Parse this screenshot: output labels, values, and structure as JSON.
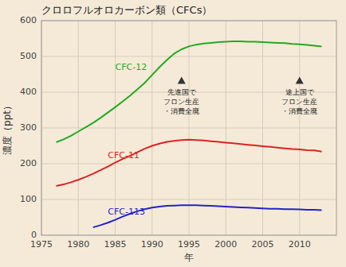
{
  "chart_data": {
    "type": "line",
    "title": "クロロフルオロカーボン類（CFCs）",
    "x_label": "年",
    "y_label": "濃度（ppt）",
    "background_color": "#f5ead8",
    "xlim": [
      1975,
      2015
    ],
    "ylim": [
      0,
      600
    ],
    "xticks": [
      1975,
      1980,
      1985,
      1990,
      1995,
      2000,
      2005,
      2010
    ],
    "yticks": [
      0,
      100,
      200,
      300,
      400,
      500,
      600
    ],
    "grid": true,
    "series": [
      {
        "name": "CFC-12",
        "color": "#22aa22",
        "label_x": 1985,
        "label_y": 455,
        "x": [
          1977,
          1978,
          1979,
          1980,
          1981,
          1982,
          1983,
          1984,
          1985,
          1986,
          1987,
          1988,
          1989,
          1990,
          1991,
          1992,
          1993,
          1994,
          1995,
          1996,
          1997,
          1998,
          1999,
          2000,
          2001,
          2002,
          2003,
          2004,
          2005,
          2006,
          2007,
          2008,
          2009,
          2010,
          2011,
          2012,
          2013
        ],
        "values": [
          260,
          268,
          278,
          290,
          302,
          314,
          328,
          343,
          358,
          374,
          390,
          408,
          426,
          448,
          470,
          490,
          508,
          520,
          528,
          533,
          536,
          538,
          540,
          541,
          542,
          542,
          541,
          541,
          540,
          539,
          538,
          537,
          535,
          534,
          532,
          530,
          528
        ]
      },
      {
        "name": "CFC-11",
        "color": "#dd2222",
        "label_x": 1984,
        "label_y": 210,
        "x": [
          1977,
          1978,
          1979,
          1980,
          1981,
          1982,
          1983,
          1984,
          1985,
          1986,
          1987,
          1988,
          1989,
          1990,
          1991,
          1992,
          1993,
          1994,
          1995,
          1996,
          1997,
          1998,
          1999,
          2000,
          2001,
          2002,
          2003,
          2004,
          2005,
          2006,
          2007,
          2008,
          2009,
          2010,
          2011,
          2012,
          2013
        ],
        "values": [
          138,
          142,
          148,
          155,
          163,
          172,
          182,
          192,
          203,
          213,
          222,
          232,
          242,
          250,
          256,
          261,
          264,
          266,
          267,
          266,
          265,
          263,
          261,
          259,
          257,
          255,
          253,
          251,
          249,
          247,
          245,
          243,
          241,
          240,
          238,
          237,
          234
        ]
      },
      {
        "name": "CFC-113",
        "color": "#2222cc",
        "label_x": 1984,
        "label_y": 52,
        "x": [
          1982,
          1983,
          1984,
          1985,
          1986,
          1987,
          1988,
          1989,
          1990,
          1991,
          1992,
          1993,
          1994,
          1995,
          1996,
          1997,
          1998,
          1999,
          2000,
          2001,
          2002,
          2003,
          2004,
          2005,
          2006,
          2007,
          2008,
          2009,
          2010,
          2011,
          2012,
          2013
        ],
        "values": [
          22,
          28,
          35,
          43,
          52,
          60,
          67,
          73,
          77,
          80,
          82,
          83,
          84,
          84,
          84,
          83,
          82,
          81,
          80,
          79,
          78,
          77,
          76,
          75,
          74,
          74,
          73,
          73,
          72,
          71,
          71,
          70
        ]
      }
    ],
    "annotations": [
      {
        "text": "先進国で\nフロン生産\n・消費全廃",
        "x": 1994,
        "y": 430
      },
      {
        "text": "途上国で\nフロン生産\n・消費全廃",
        "x": 2010,
        "y": 430
      }
    ]
  }
}
